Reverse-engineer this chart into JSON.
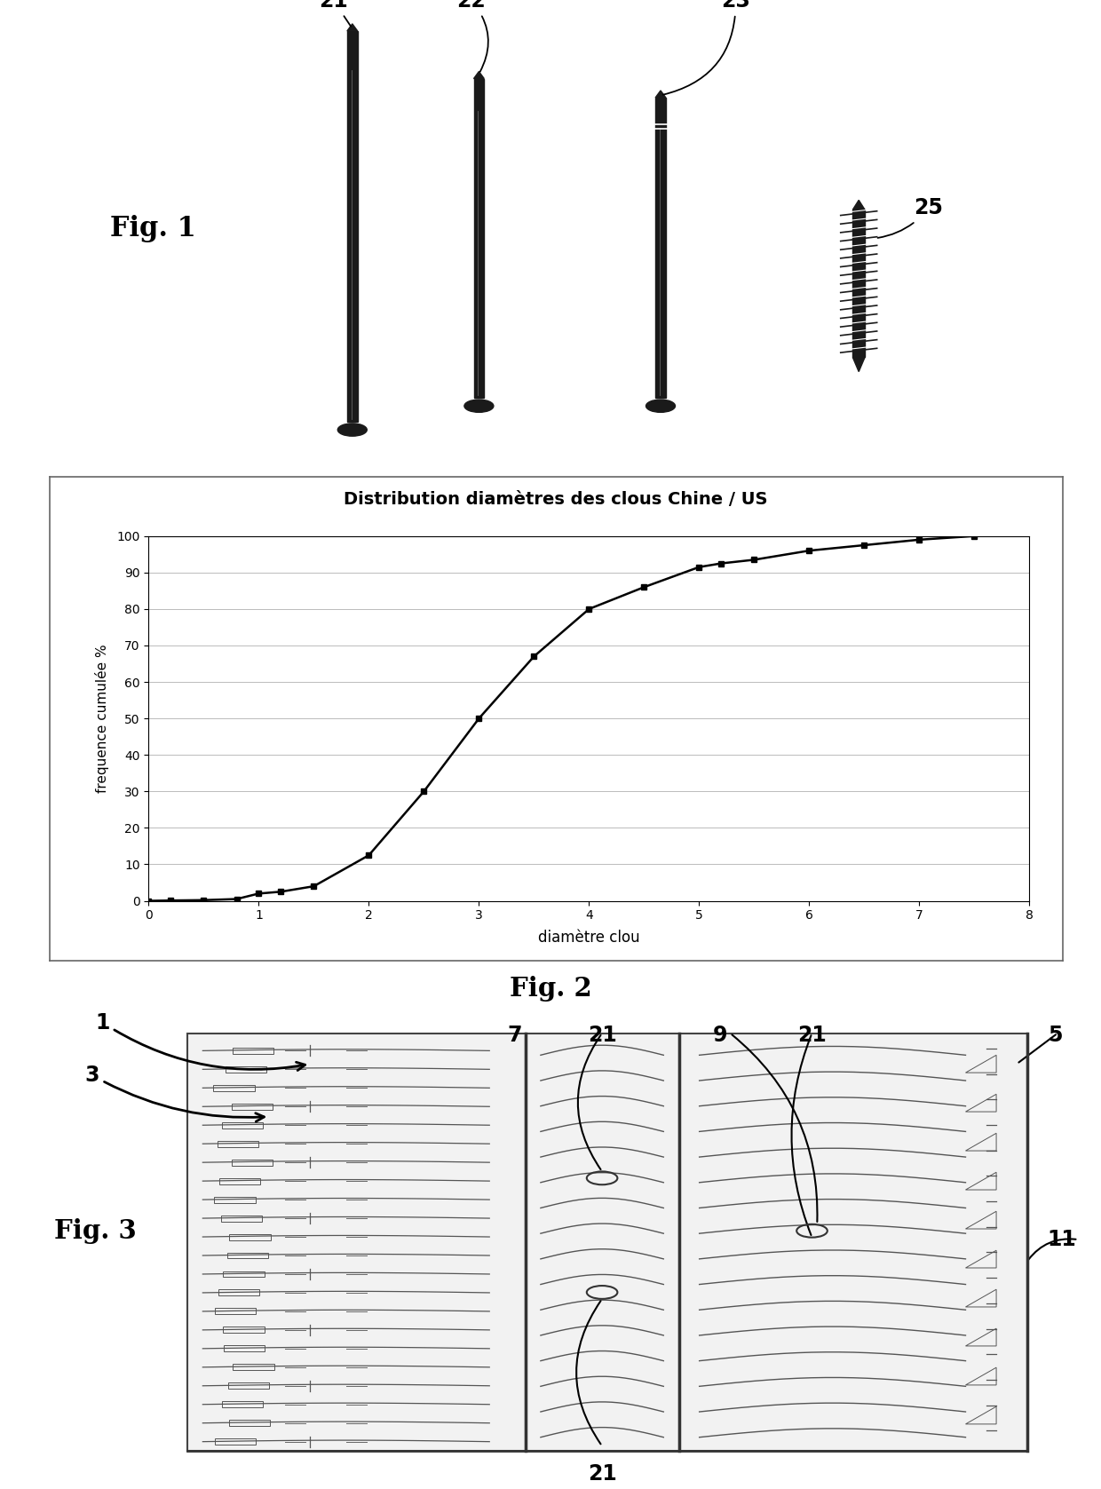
{
  "title": "Distribution diamètres des clous Chine / US",
  "xlabel": "diamètre clou",
  "ylabel": "frequence cumulée %",
  "x_data": [
    0,
    0.2,
    0.5,
    0.8,
    1.0,
    1.2,
    1.5,
    2.0,
    2.5,
    3.0,
    3.5,
    4.0,
    4.5,
    5.0,
    5.2,
    5.5,
    6.0,
    6.5,
    7.0,
    7.5
  ],
  "y_data": [
    0,
    0.1,
    0.2,
    0.5,
    2.0,
    2.5,
    4.0,
    12.5,
    30.0,
    50.0,
    67.0,
    80.0,
    86.0,
    91.5,
    92.5,
    93.5,
    96.0,
    97.5,
    99.0,
    100.0
  ],
  "ylim": [
    0,
    100
  ],
  "xlim": [
    0,
    8
  ],
  "yticks": [
    0,
    10,
    20,
    30,
    40,
    50,
    60,
    70,
    80,
    90,
    100
  ],
  "xticks": [
    0,
    1,
    2,
    3,
    4,
    5,
    6,
    7,
    8
  ],
  "bg_color": "#ffffff",
  "line_color": "#000000",
  "grid_color": "#aaaaaa",
  "marker_color": "#000000",
  "nail_color": "#1a1a1a"
}
